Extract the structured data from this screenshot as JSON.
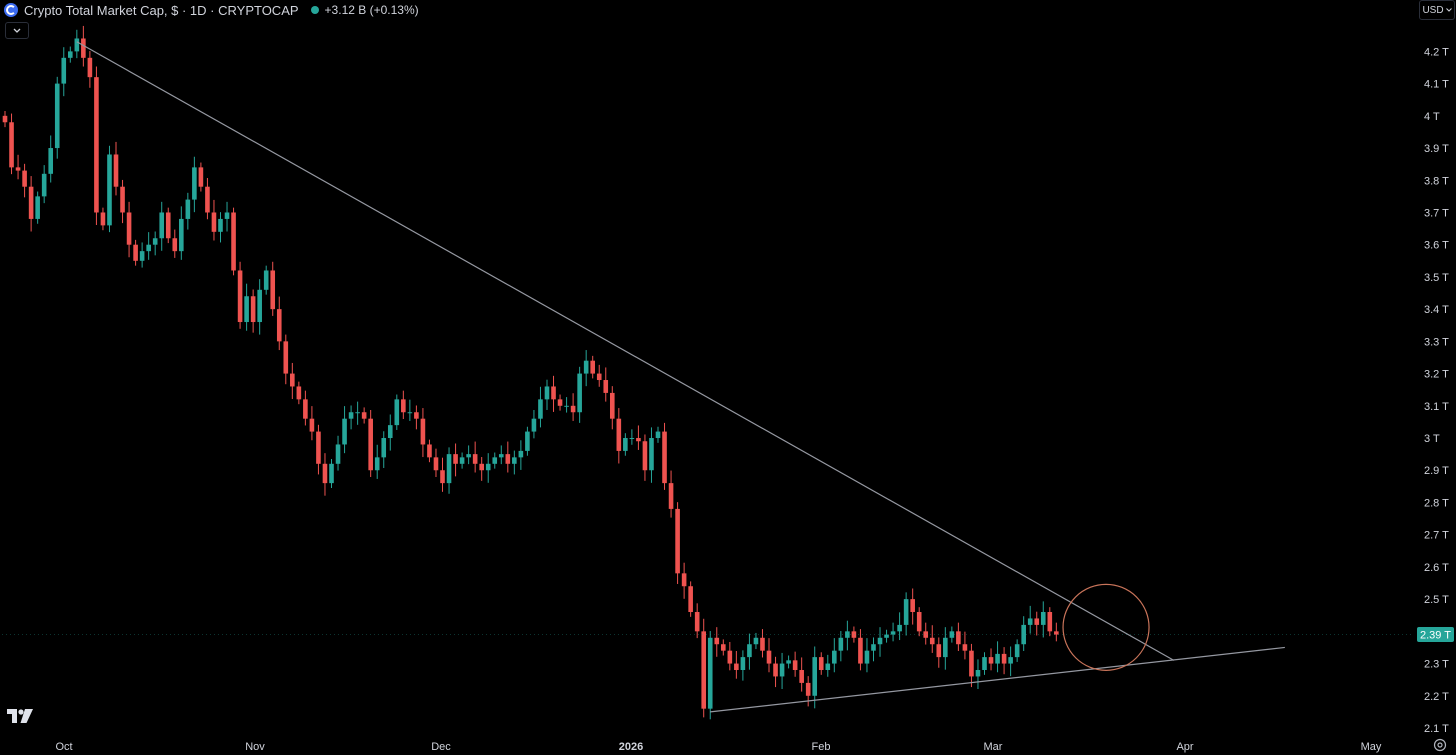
{
  "header": {
    "symbol_title": "Crypto Total Market Cap, $ · 1D · CRYPTOCAP",
    "change": "+3.12 B (+0.13%)",
    "currency": "USD",
    "symbol_icon": "crypto-cap-icon",
    "status_icon": "market-open-dot"
  },
  "colors": {
    "up": "#26a69a",
    "down": "#ef5350",
    "trendline": "#9598a1",
    "highlight_circle": "#c9745a",
    "background": "#000000"
  },
  "chart_data": {
    "type": "candlestick",
    "title": "Crypto Total Market Cap, $ · 1D · CRYPTOCAP",
    "x_axis_labels": [
      "Oct",
      "Nov",
      "Dec",
      "2026",
      "Feb",
      "Mar",
      "Apr",
      "May"
    ],
    "y_axis": {
      "unit": "T",
      "ylim": [
        2.07,
        4.32
      ],
      "ticks": [
        "2.1 T",
        "2.2 T",
        "2.3 T",
        "2.4 T",
        "2.5 T",
        "2.6 T",
        "2.7 T",
        "2.8 T",
        "2.9 T",
        "3 T",
        "3.1 T",
        "3.2 T",
        "3.3 T",
        "3.4 T",
        "3.5 T",
        "3.6 T",
        "3.7 T",
        "3.8 T",
        "3.9 T",
        "4 T",
        "4.1 T",
        "4.2 T"
      ]
    },
    "last_price_label": "2.39 T",
    "last_price": 2.39,
    "closes": [
      3.98,
      3.84,
      3.83,
      3.78,
      3.68,
      3.75,
      3.82,
      3.9,
      4.1,
      4.18,
      4.2,
      4.24,
      4.18,
      4.12,
      3.7,
      3.66,
      3.88,
      3.78,
      3.7,
      3.6,
      3.55,
      3.58,
      3.6,
      3.62,
      3.7,
      3.62,
      3.58,
      3.68,
      3.74,
      3.84,
      3.78,
      3.7,
      3.64,
      3.68,
      3.7,
      3.52,
      3.36,
      3.44,
      3.36,
      3.46,
      3.52,
      3.4,
      3.3,
      3.2,
      3.16,
      3.12,
      3.06,
      3.02,
      2.92,
      2.86,
      2.92,
      2.98,
      3.06,
      3.08,
      3.08,
      3.06,
      2.9,
      2.94,
      3.0,
      3.04,
      3.12,
      3.08,
      3.08,
      3.06,
      2.98,
      2.94,
      2.9,
      2.86,
      2.95,
      2.92,
      2.94,
      2.95,
      2.92,
      2.9,
      2.92,
      2.94,
      2.95,
      2.92,
      2.94,
      2.96,
      3.02,
      3.06,
      3.12,
      3.16,
      3.12,
      3.1,
      3.1,
      3.08,
      3.2,
      3.24,
      3.2,
      3.18,
      3.14,
      3.06,
      2.96,
      3.0,
      3.0,
      2.99,
      2.9,
      3.0,
      3.02,
      2.86,
      2.78,
      2.58,
      2.54,
      2.46,
      2.4,
      2.16,
      2.38,
      2.36,
      2.34,
      2.3,
      2.28,
      2.32,
      2.36,
      2.38,
      2.34,
      2.3,
      2.26,
      2.3,
      2.31,
      2.28,
      2.24,
      2.2,
      2.32,
      2.28,
      2.3,
      2.34,
      2.38,
      2.4,
      2.38,
      2.3,
      2.34,
      2.36,
      2.38,
      2.39,
      2.4,
      2.42,
      2.5,
      2.46,
      2.4,
      2.38,
      2.36,
      2.32,
      2.38,
      2.4,
      2.36,
      2.34,
      2.26,
      2.28,
      2.32,
      2.3,
      2.33,
      2.3,
      2.32,
      2.36,
      2.42,
      2.44,
      2.42,
      2.46,
      2.4,
      2.39
    ],
    "trendlines": [
      {
        "name": "descending-resistance",
        "from": {
          "bar": 11,
          "value": 4.23
        },
        "to": {
          "bar": 179,
          "value": 2.31
        }
      },
      {
        "name": "ascending-support",
        "from": {
          "bar": 108,
          "value": 2.15
        },
        "to": {
          "bar": 196,
          "value": 2.35
        }
      }
    ],
    "annotation": {
      "type": "circle",
      "center": {
        "bar": 168,
        "value": 2.4
      }
    }
  }
}
